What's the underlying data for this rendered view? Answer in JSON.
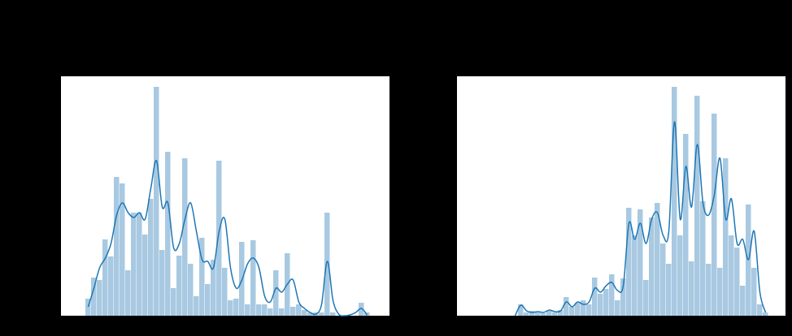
{
  "chart_data": [
    {
      "type": "histogram",
      "color": "#a3c6df",
      "line_color": "#1f77b4",
      "xlim": [
        0,
        404
      ],
      "ylim": [
        0,
        295
      ],
      "bins": [
        30,
        37,
        44,
        51,
        58,
        65,
        72,
        79,
        86,
        93,
        100,
        107,
        114,
        121,
        128,
        135,
        142,
        149,
        156,
        163,
        170,
        177,
        184,
        191,
        198,
        205,
        212,
        219,
        226,
        233,
        240,
        247,
        254,
        261,
        268,
        275,
        282,
        289,
        296,
        303,
        310,
        317,
        324,
        331,
        338,
        345,
        352,
        359,
        366,
        373,
        380
      ],
      "values": [
        21,
        47,
        44,
        94,
        73,
        171,
        163,
        56,
        127,
        127,
        100,
        144,
        282,
        81,
        202,
        34,
        74,
        194,
        64,
        24,
        96,
        39,
        69,
        191,
        59,
        19,
        21,
        91,
        14,
        93,
        14,
        14,
        9,
        56,
        9,
        77,
        11,
        14,
        7,
        4,
        4,
        4,
        127,
        4,
        0,
        0,
        0,
        0,
        16,
        4
      ],
      "kde_x": [
        33.5,
        40.5,
        47.5,
        54.5,
        61.5,
        68.5,
        75.5,
        82.5,
        89.5,
        96.5,
        103.5,
        110.5,
        117.5,
        124.5,
        131.5,
        138.5,
        145.5,
        152.5,
        159.5,
        166.5,
        173.5,
        180.5,
        187.5,
        194.5,
        201.5,
        208.5,
        215.5,
        222.5,
        229.5,
        236.5,
        243.5,
        250.5,
        257.5,
        264.5,
        271.5,
        278.5,
        285.5,
        292.5,
        299.5,
        306.5,
        313.5,
        320.5,
        327.5,
        334.5,
        341.5,
        348.5,
        355.5,
        362.5,
        369.5,
        376.5
      ],
      "kde_values": [
        11,
        34,
        59,
        71,
        89,
        124,
        139,
        127,
        121,
        127,
        119,
        157,
        191,
        134,
        139,
        84,
        89,
        119,
        139,
        104,
        69,
        67,
        59,
        104,
        119,
        59,
        34,
        44,
        64,
        71,
        59,
        24,
        17,
        34,
        29,
        39,
        44,
        17,
        9,
        4,
        2,
        14,
        67,
        19,
        2,
        0,
        1,
        4,
        9,
        1
      ]
    },
    {
      "type": "histogram",
      "color": "#a3c6df",
      "line_color": "#1f77b4",
      "xlim": [
        0,
        404
      ],
      "ylim": [
        0,
        295
      ],
      "bins": [
        68,
        75,
        82,
        89,
        96,
        103,
        110,
        117,
        124,
        131,
        138,
        145,
        152,
        159,
        166,
        173,
        180,
        187,
        194,
        201,
        208,
        215,
        222,
        229,
        236,
        243,
        250,
        257,
        264,
        271,
        278,
        285,
        292,
        299,
        306,
        313,
        320,
        327,
        334,
        341,
        348,
        355,
        362,
        369,
        376,
        383
      ],
      "values": [
        0,
        14,
        4,
        6,
        4,
        3,
        6,
        4,
        7,
        23,
        11,
        16,
        19,
        14,
        47,
        27,
        33,
        51,
        19,
        46,
        133,
        99,
        131,
        44,
        121,
        139,
        89,
        64,
        282,
        99,
        224,
        67,
        271,
        141,
        64,
        249,
        59,
        194,
        99,
        84,
        37,
        137,
        59,
        14,
        4
      ],
      "kde_x": [
        71.5,
        78.5,
        85.5,
        92.5,
        99.5,
        106.5,
        113.5,
        120.5,
        127.5,
        134.5,
        141.5,
        148.5,
        155.5,
        162.5,
        169.5,
        176.5,
        183.5,
        190.5,
        197.5,
        204.5,
        211.5,
        218.5,
        225.5,
        232.5,
        239.5,
        246.5,
        253.5,
        260.5,
        267.5,
        274.5,
        281.5,
        288.5,
        295.5,
        302.5,
        309.5,
        316.5,
        323.5,
        330.5,
        337.5,
        344.5,
        351.5,
        358.5,
        365.5,
        372.5,
        379.5
      ],
      "kde_values": [
        0,
        13,
        6,
        4,
        5,
        4,
        7,
        5,
        6,
        17,
        11,
        17,
        14,
        17,
        34,
        29,
        37,
        41,
        31,
        37,
        114,
        94,
        114,
        89,
        119,
        127,
        99,
        104,
        239,
        119,
        184,
        134,
        211,
        139,
        124,
        149,
        194,
        119,
        144,
        89,
        94,
        69,
        104,
        29,
        4
      ]
    }
  ]
}
